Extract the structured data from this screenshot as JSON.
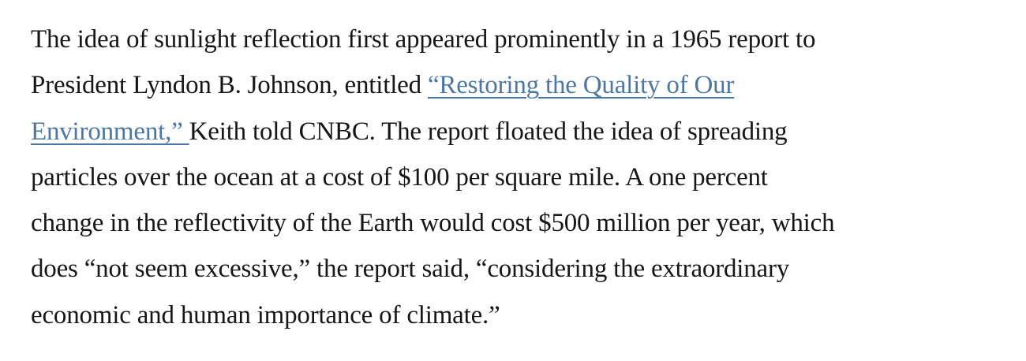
{
  "page": {
    "background": "#ffffff"
  },
  "paragraph": {
    "text_color": "#161616",
    "link_color": "#4a77a8",
    "link_label": "“Restoring the Quality of Our Environment,”",
    "lines": [
      {
        "segments": [
          {
            "type": "text",
            "text": "The idea of sunlight reflection first appeared prominently in a 1965 report to"
          }
        ]
      },
      {
        "segments": [
          {
            "type": "text",
            "text": "President Lyndon B. Johnson, entitled "
          },
          {
            "type": "link",
            "text": "“Restoring the Quality of Our"
          }
        ]
      },
      {
        "segments": [
          {
            "type": "link",
            "text": "Environment,” "
          },
          {
            "type": "text",
            "text": "Keith told CNBC. The report floated the idea of spreading"
          }
        ]
      },
      {
        "segments": [
          {
            "type": "text",
            "text": "particles over the ocean at a cost of $100 per square mile. A one percent"
          }
        ]
      },
      {
        "segments": [
          {
            "type": "text",
            "text": "change in the reflectivity of the Earth would cost $500 million per year, which"
          }
        ]
      },
      {
        "segments": [
          {
            "type": "text",
            "text": "does “not seem excessive,” the report said, “considering the extraordinary"
          }
        ]
      },
      {
        "segments": [
          {
            "type": "text",
            "text": "economic and human importance of climate.”"
          }
        ]
      }
    ]
  }
}
